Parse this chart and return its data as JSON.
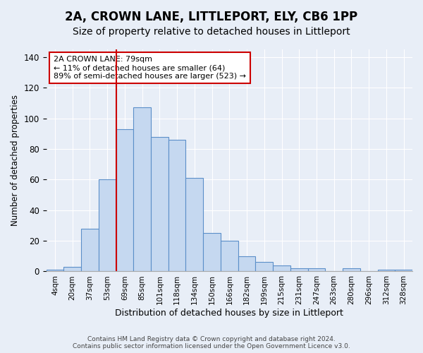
{
  "title": "2A, CROWN LANE, LITTLEPORT, ELY, CB6 1PP",
  "subtitle": "Size of property relative to detached houses in Littleport",
  "xlabel": "Distribution of detached houses by size in Littleport",
  "ylabel": "Number of detached properties",
  "bar_labels": [
    "4sqm",
    "20sqm",
    "37sqm",
    "53sqm",
    "69sqm",
    "85sqm",
    "101sqm",
    "118sqm",
    "134sqm",
    "150sqm",
    "166sqm",
    "182sqm",
    "199sqm",
    "215sqm",
    "231sqm",
    "247sqm",
    "263sqm",
    "280sqm",
    "296sqm",
    "312sqm",
    "328sqm"
  ],
  "bar_values": [
    1,
    3,
    28,
    60,
    93,
    107,
    88,
    86,
    61,
    25,
    20,
    10,
    6,
    4,
    2,
    2,
    0,
    2,
    0,
    1,
    1
  ],
  "bar_color": "#c5d8f0",
  "bar_edge_color": "#5b8fc9",
  "vline_x_idx": 4,
  "vline_color": "#cc0000",
  "annotation_title": "2A CROWN LANE: 79sqm",
  "annotation_line1": "← 11% of detached houses are smaller (64)",
  "annotation_line2": "89% of semi-detached houses are larger (523) →",
  "annotation_box_color": "#ffffff",
  "annotation_box_edge_color": "#cc0000",
  "ylim": [
    0,
    145
  ],
  "footer1": "Contains HM Land Registry data © Crown copyright and database right 2024.",
  "footer2": "Contains public sector information licensed under the Open Government Licence v3.0.",
  "background_color": "#e8eef7",
  "title_fontsize": 12,
  "subtitle_fontsize": 10
}
